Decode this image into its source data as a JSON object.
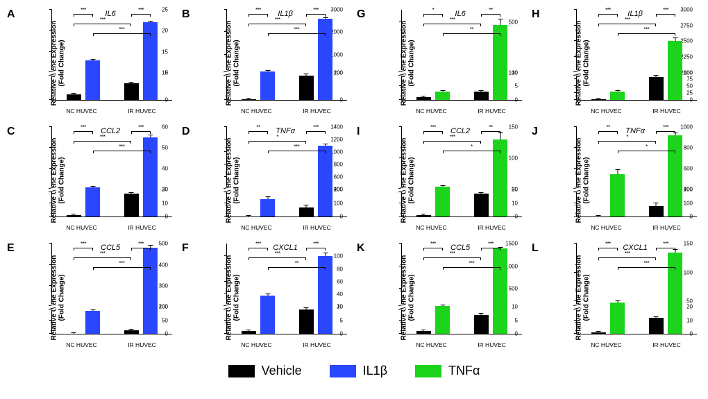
{
  "colors": {
    "vehicle": "#000000",
    "il1b": "#2a46ff",
    "tnfa": "#1bd41b",
    "axis": "#000000",
    "bg": "#ffffff"
  },
  "legend": [
    {
      "label": "Vehicle",
      "colorKey": "vehicle"
    },
    {
      "label": "IL1β",
      "colorKey": "il1b"
    },
    {
      "label": "TNFα",
      "colorKey": "tnfa"
    }
  ],
  "axis": {
    "ylabel_line1": "Relative Gene Expression",
    "ylabel_line2": "(Fold Change)",
    "xgroups": [
      "NC HUVEC",
      "IR HUVEC"
    ]
  },
  "typography": {
    "panel_letter_pt": 16,
    "gene_label_pt": 11,
    "ylabel_pt": 10,
    "tick_pt": 8,
    "xlab_pt": 8.5,
    "sig_pt": 8,
    "legend_pt": 18
  },
  "panels": [
    {
      "id": "A",
      "gene": "IL6",
      "treatColor": "il1b",
      "lower": {
        "min": 0,
        "max": 5,
        "ticks": [
          0,
          5
        ]
      },
      "upper": {
        "min": 10,
        "max": 25,
        "ticks": [
          10,
          15,
          20,
          25
        ]
      },
      "bars": [
        {
          "g": 0,
          "t": "vehicle",
          "v": 1,
          "e": 0.2
        },
        {
          "g": 0,
          "t": "treat",
          "v": 13,
          "e": 0.3
        },
        {
          "g": 1,
          "t": "vehicle",
          "v": 3,
          "e": 0.3
        },
        {
          "g": 1,
          "t": "treat",
          "v": 22,
          "e": 0.4
        }
      ],
      "sig": [
        {
          "from": 0,
          "to": 1,
          "stars": "***",
          "level": 0
        },
        {
          "from": 2,
          "to": 3,
          "stars": "***",
          "level": 0
        },
        {
          "from": 0,
          "to": 2,
          "stars": "***",
          "level": 1
        },
        {
          "from": 1,
          "to": 3,
          "stars": "***",
          "level": 2
        }
      ]
    },
    {
      "id": "B",
      "gene": "IL1β",
      "treatColor": "il1b",
      "lower": {
        "min": 0,
        "max": 100,
        "ticks": [
          0,
          100
        ]
      },
      "upper": {
        "min": 200,
        "max": 3000,
        "ticks": [
          200,
          1000,
          2000,
          3000
        ]
      },
      "bars": [
        {
          "g": 0,
          "t": "vehicle",
          "v": 1,
          "e": 1
        },
        {
          "g": 0,
          "t": "treat",
          "v": 250,
          "e": 20
        },
        {
          "g": 1,
          "t": "vehicle",
          "v": 90,
          "e": 8
        },
        {
          "g": 1,
          "t": "treat",
          "v": 2600,
          "e": 80
        }
      ],
      "sig": [
        {
          "from": 0,
          "to": 1,
          "stars": "***",
          "level": 0
        },
        {
          "from": 2,
          "to": 3,
          "stars": "***",
          "level": 0
        },
        {
          "from": 0,
          "to": 2,
          "stars": "***",
          "level": 1
        },
        {
          "from": 1,
          "to": 3,
          "stars": "***",
          "level": 2
        }
      ]
    },
    {
      "id": "G",
      "gene": "IL6",
      "treatColor": "tnfa",
      "lower": {
        "min": 0,
        "max": 10,
        "ticks": [
          0,
          5,
          10
        ]
      },
      "upper": {
        "min": 100,
        "max": 600,
        "ticks": [
          100,
          500
        ]
      },
      "bars": [
        {
          "g": 0,
          "t": "vehicle",
          "v": 1,
          "e": 0.3
        },
        {
          "g": 0,
          "t": "treat",
          "v": 3,
          "e": 0.5
        },
        {
          "g": 1,
          "t": "vehicle",
          "v": 3,
          "e": 0.4
        },
        {
          "g": 1,
          "t": "treat",
          "v": 480,
          "e": 60
        }
      ],
      "sig": [
        {
          "from": 0,
          "to": 1,
          "stars": "*",
          "level": 0
        },
        {
          "from": 2,
          "to": 3,
          "stars": "**",
          "level": 0
        },
        {
          "from": 0,
          "to": 2,
          "stars": "***",
          "level": 1
        },
        {
          "from": 1,
          "to": 3,
          "stars": "**",
          "level": 2
        }
      ]
    },
    {
      "id": "H",
      "gene": "IL1β",
      "treatColor": "tnfa",
      "lower": {
        "min": 0,
        "max": 100,
        "ticks": [
          0,
          25,
          50,
          75,
          100
        ]
      },
      "upper": {
        "min": 2000,
        "max": 3000,
        "ticks": [
          2000,
          2250,
          2500,
          2750,
          3000
        ]
      },
      "bars": [
        {
          "g": 0,
          "t": "vehicle",
          "v": 1,
          "e": 1
        },
        {
          "g": 0,
          "t": "treat",
          "v": 30,
          "e": 3
        },
        {
          "g": 1,
          "t": "vehicle",
          "v": 85,
          "e": 8
        },
        {
          "g": 1,
          "t": "treat",
          "v": 2500,
          "e": 80
        }
      ],
      "sig": [
        {
          "from": 0,
          "to": 1,
          "stars": "***",
          "level": 0
        },
        {
          "from": 2,
          "to": 3,
          "stars": "***",
          "level": 0
        },
        {
          "from": 0,
          "to": 2,
          "stars": "***",
          "level": 1
        },
        {
          "from": 1,
          "to": 3,
          "stars": "***",
          "level": 2
        }
      ]
    },
    {
      "id": "C",
      "gene": "CCL2",
      "treatColor": "il1b",
      "lower": {
        "min": 0,
        "max": 20,
        "ticks": [
          0,
          10,
          20
        ]
      },
      "upper": {
        "min": 30,
        "max": 60,
        "ticks": [
          30,
          40,
          50,
          60
        ]
      },
      "bars": [
        {
          "g": 0,
          "t": "vehicle",
          "v": 1,
          "e": 0.3
        },
        {
          "g": 0,
          "t": "treat",
          "v": 31,
          "e": 1
        },
        {
          "g": 1,
          "t": "vehicle",
          "v": 17,
          "e": 1
        },
        {
          "g": 1,
          "t": "treat",
          "v": 55,
          "e": 1.5
        }
      ],
      "sig": [
        {
          "from": 0,
          "to": 1,
          "stars": "***",
          "level": 0
        },
        {
          "from": 2,
          "to": 3,
          "stars": "***",
          "level": 0
        },
        {
          "from": 0,
          "to": 2,
          "stars": "***",
          "level": 1
        },
        {
          "from": 1,
          "to": 3,
          "stars": "***",
          "level": 2
        }
      ]
    },
    {
      "id": "D",
      "gene": "TNFα",
      "treatColor": "il1b",
      "lower": {
        "min": 0,
        "max": 200,
        "ticks": [
          0,
          100,
          200
        ]
      },
      "upper": {
        "min": 400,
        "max": 1400,
        "ticks": [
          400,
          600,
          800,
          1000,
          1200,
          1400
        ]
      },
      "bars": [
        {
          "g": 0,
          "t": "vehicle",
          "v": 1,
          "e": 1
        },
        {
          "g": 0,
          "t": "treat",
          "v": 130,
          "e": 30
        },
        {
          "g": 1,
          "t": "vehicle",
          "v": 70,
          "e": 25
        },
        {
          "g": 1,
          "t": "treat",
          "v": 1100,
          "e": 40
        }
      ],
      "sig": [
        {
          "from": 0,
          "to": 1,
          "stars": "**",
          "level": 0
        },
        {
          "from": 2,
          "to": 3,
          "stars": "***",
          "level": 0
        },
        {
          "from": 0,
          "to": 2,
          "stars": "*",
          "level": 1
        },
        {
          "from": 1,
          "to": 3,
          "stars": "***",
          "level": 2
        }
      ]
    },
    {
      "id": "I",
      "gene": "CCL2",
      "treatColor": "tnfa",
      "lower": {
        "min": 0,
        "max": 20,
        "ticks": [
          0,
          10,
          20
        ]
      },
      "upper": {
        "min": 50,
        "max": 150,
        "ticks": [
          50,
          100,
          150
        ]
      },
      "bars": [
        {
          "g": 0,
          "t": "vehicle",
          "v": 1,
          "e": 0.3
        },
        {
          "g": 0,
          "t": "treat",
          "v": 55,
          "e": 3
        },
        {
          "g": 1,
          "t": "vehicle",
          "v": 17,
          "e": 1
        },
        {
          "g": 1,
          "t": "treat",
          "v": 130,
          "e": 15
        }
      ],
      "sig": [
        {
          "from": 0,
          "to": 1,
          "stars": "***",
          "level": 0
        },
        {
          "from": 2,
          "to": 3,
          "stars": "**",
          "level": 0
        },
        {
          "from": 0,
          "to": 2,
          "stars": "***",
          "level": 1
        },
        {
          "from": 1,
          "to": 3,
          "stars": "*",
          "level": 2
        }
      ]
    },
    {
      "id": "J",
      "gene": "TNFα",
      "treatColor": "tnfa",
      "lower": {
        "min": 0,
        "max": 200,
        "ticks": [
          0,
          100,
          200
        ]
      },
      "upper": {
        "min": 400,
        "max": 1000,
        "ticks": [
          400,
          600,
          800,
          1000
        ]
      },
      "bars": [
        {
          "g": 0,
          "t": "vehicle",
          "v": 1,
          "e": 1
        },
        {
          "g": 0,
          "t": "treat",
          "v": 550,
          "e": 60
        },
        {
          "g": 1,
          "t": "vehicle",
          "v": 80,
          "e": 30
        },
        {
          "g": 1,
          "t": "treat",
          "v": 920,
          "e": 30
        }
      ],
      "sig": [
        {
          "from": 0,
          "to": 1,
          "stars": "**",
          "level": 0
        },
        {
          "from": 2,
          "to": 3,
          "stars": "***",
          "level": 0
        },
        {
          "from": 0,
          "to": 2,
          "stars": "*",
          "level": 1
        },
        {
          "from": 1,
          "to": 3,
          "stars": "*",
          "level": 2
        }
      ]
    },
    {
      "id": "E",
      "gene": "CCL5",
      "treatColor": "il1b",
      "lower": {
        "min": 0,
        "max": 100,
        "ticks": [
          0,
          50,
          100
        ]
      },
      "upper": {
        "min": 200,
        "max": 500,
        "ticks": [
          200,
          300,
          400,
          500
        ]
      },
      "bars": [
        {
          "g": 0,
          "t": "vehicle",
          "v": 1,
          "e": 0.5
        },
        {
          "g": 0,
          "t": "treat",
          "v": 85,
          "e": 5
        },
        {
          "g": 1,
          "t": "vehicle",
          "v": 12,
          "e": 2
        },
        {
          "g": 1,
          "t": "treat",
          "v": 480,
          "e": 25
        }
      ],
      "sig": [
        {
          "from": 0,
          "to": 1,
          "stars": "***",
          "level": 0
        },
        {
          "from": 2,
          "to": 3,
          "stars": "***",
          "level": 0
        },
        {
          "from": 0,
          "to": 2,
          "stars": "***",
          "level": 1
        },
        {
          "from": 1,
          "to": 3,
          "stars": "***",
          "level": 2
        }
      ]
    },
    {
      "id": "F",
      "gene": "CXCL1",
      "treatColor": "il1b",
      "lower": {
        "min": 0,
        "max": 10,
        "ticks": [
          0,
          5,
          10
        ]
      },
      "upper": {
        "min": 20,
        "max": 120,
        "ticks": [
          20,
          40,
          60,
          80,
          100
        ]
      },
      "bars": [
        {
          "g": 0,
          "t": "vehicle",
          "v": 1,
          "e": 0.3
        },
        {
          "g": 0,
          "t": "treat",
          "v": 38,
          "e": 4
        },
        {
          "g": 1,
          "t": "vehicle",
          "v": 9,
          "e": 1
        },
        {
          "g": 1,
          "t": "treat",
          "v": 100,
          "e": 8
        }
      ],
      "sig": [
        {
          "from": 0,
          "to": 1,
          "stars": "***",
          "level": 0
        },
        {
          "from": 2,
          "to": 3,
          "stars": "***",
          "level": 0
        },
        {
          "from": 0,
          "to": 2,
          "stars": "***",
          "level": 1
        },
        {
          "from": 1,
          "to": 3,
          "stars": "**",
          "level": 2
        }
      ]
    },
    {
      "id": "K",
      "gene": "CCL5",
      "treatColor": "tnfa",
      "lower": {
        "min": 0,
        "max": 10,
        "ticks": [
          0,
          5,
          10
        ]
      },
      "upper": {
        "min": 100,
        "max": 1500,
        "ticks": [
          500,
          1000,
          1500
        ]
      },
      "bars": [
        {
          "g": 0,
          "t": "vehicle",
          "v": 1,
          "e": 0.5
        },
        {
          "g": 0,
          "t": "treat",
          "v": 120,
          "e": 10
        },
        {
          "g": 1,
          "t": "vehicle",
          "v": 7,
          "e": 1
        },
        {
          "g": 1,
          "t": "treat",
          "v": 1400,
          "e": 30
        }
      ],
      "sig": [
        {
          "from": 0,
          "to": 1,
          "stars": "***",
          "level": 0
        },
        {
          "from": 2,
          "to": 3,
          "stars": "***",
          "level": 0
        },
        {
          "from": 0,
          "to": 2,
          "stars": "***",
          "level": 1
        },
        {
          "from": 1,
          "to": 3,
          "stars": "***",
          "level": 2
        }
      ]
    },
    {
      "id": "L",
      "gene": "CXCL1",
      "treatColor": "tnfa",
      "lower": {
        "min": 0,
        "max": 20,
        "ticks": [
          0,
          10,
          20
        ]
      },
      "upper": {
        "min": 40,
        "max": 150,
        "ticks": [
          50,
          100,
          150
        ]
      },
      "bars": [
        {
          "g": 0,
          "t": "vehicle",
          "v": 1,
          "e": 0.3
        },
        {
          "g": 0,
          "t": "treat",
          "v": 48,
          "e": 4
        },
        {
          "g": 1,
          "t": "vehicle",
          "v": 12,
          "e": 1
        },
        {
          "g": 1,
          "t": "treat",
          "v": 135,
          "e": 8
        }
      ],
      "sig": [
        {
          "from": 0,
          "to": 1,
          "stars": "***",
          "level": 0
        },
        {
          "from": 2,
          "to": 3,
          "stars": "***",
          "level": 0
        },
        {
          "from": 0,
          "to": 2,
          "stars": "***",
          "level": 1
        },
        {
          "from": 1,
          "to": 3,
          "stars": "***",
          "level": 2
        }
      ]
    }
  ]
}
